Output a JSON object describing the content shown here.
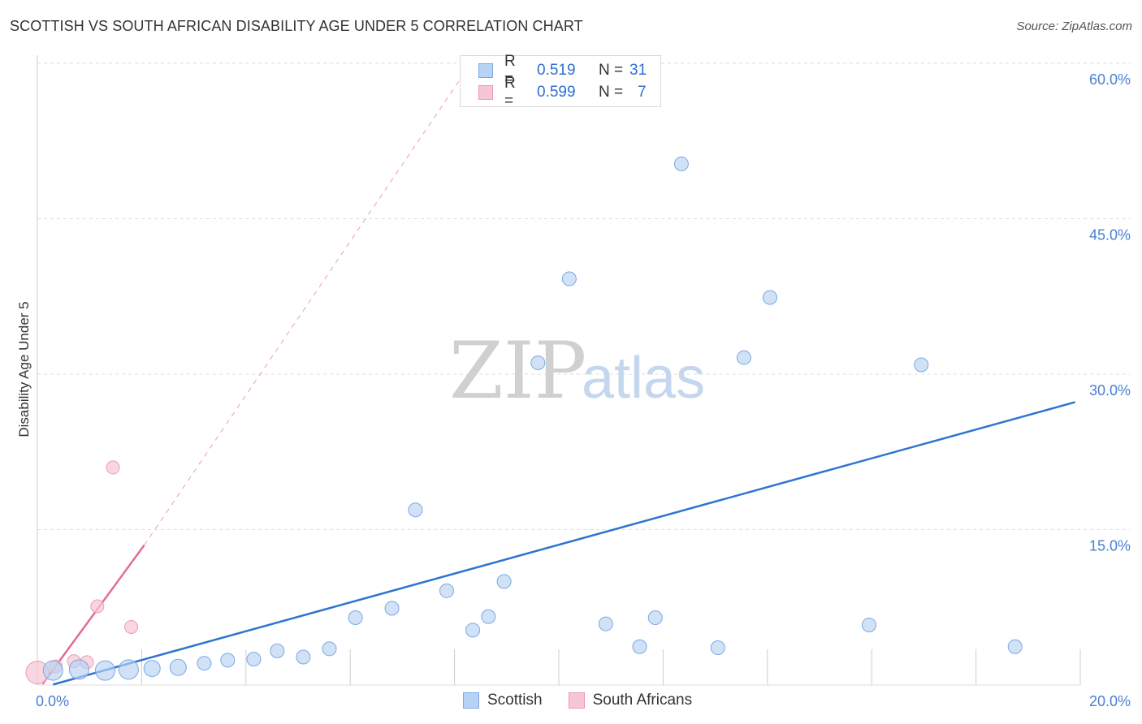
{
  "title": "SCOTTISH VS SOUTH AFRICAN DISABILITY AGE UNDER 5 CORRELATION CHART",
  "source": "Source: ZipAtlas.com",
  "watermark": {
    "zip": "ZIP",
    "atlas": "atlas"
  },
  "colors": {
    "scottish_fill": "#b8d2f3",
    "scottish_stroke": "#7aa8e6",
    "scottish_line": "#2f74d0",
    "sa_fill": "#f7c6d4",
    "sa_stroke": "#ee9ab4",
    "sa_line": "#e36b98",
    "grid": "#dddddd",
    "tick_text": "#4a7fd4"
  },
  "legend_top": {
    "rows": [
      {
        "r_label": "R =",
        "r_value": "0.519",
        "n_label": "N =",
        "n_value": "31"
      },
      {
        "r_label": "R =",
        "r_value": "0.599",
        "n_label": "N =",
        "n_value": "7"
      }
    ]
  },
  "legend_bottom": [
    "Scottish",
    "South Africans"
  ],
  "chart_data": {
    "type": "scatter",
    "title": "SCOTTISH VS SOUTH AFRICAN DISABILITY AGE UNDER 5 CORRELATION CHART",
    "xlabel": "",
    "ylabel": "Disability Age Under 5",
    "xlim": [
      0,
      20
    ],
    "ylim": [
      0,
      60
    ],
    "x_tick_labels": [
      "0.0%",
      "20.0%"
    ],
    "y_ticks": [
      15,
      30,
      45,
      60
    ],
    "y_tick_labels": [
      "15.0%",
      "30.0%",
      "45.0%",
      "60.0%"
    ],
    "grid": true,
    "series": [
      {
        "name": "Scottish",
        "r": 0.519,
        "n": 31,
        "points": [
          {
            "x": 0.3,
            "y": 1.4
          },
          {
            "x": 0.8,
            "y": 1.5
          },
          {
            "x": 1.3,
            "y": 1.4
          },
          {
            "x": 1.75,
            "y": 1.5
          },
          {
            "x": 2.2,
            "y": 1.6
          },
          {
            "x": 2.7,
            "y": 1.7
          },
          {
            "x": 3.2,
            "y": 2.1
          },
          {
            "x": 3.65,
            "y": 2.4
          },
          {
            "x": 4.15,
            "y": 2.5
          },
          {
            "x": 4.6,
            "y": 3.3
          },
          {
            "x": 5.1,
            "y": 2.7
          },
          {
            "x": 5.6,
            "y": 3.5
          },
          {
            "x": 6.1,
            "y": 6.5
          },
          {
            "x": 6.8,
            "y": 7.4
          },
          {
            "x": 7.25,
            "y": 16.9
          },
          {
            "x": 7.85,
            "y": 9.1
          },
          {
            "x": 8.35,
            "y": 5.3
          },
          {
            "x": 8.65,
            "y": 6.6
          },
          {
            "x": 8.95,
            "y": 10.0
          },
          {
            "x": 9.6,
            "y": 31.1
          },
          {
            "x": 10.2,
            "y": 39.2
          },
          {
            "x": 10.9,
            "y": 5.9
          },
          {
            "x": 11.55,
            "y": 3.7
          },
          {
            "x": 11.85,
            "y": 6.5
          },
          {
            "x": 12.35,
            "y": 50.3
          },
          {
            "x": 13.05,
            "y": 3.6
          },
          {
            "x": 13.55,
            "y": 31.6
          },
          {
            "x": 14.05,
            "y": 37.4
          },
          {
            "x": 15.95,
            "y": 5.8
          },
          {
            "x": 16.95,
            "y": 30.9
          },
          {
            "x": 18.75,
            "y": 3.7
          }
        ],
        "trend": {
          "x0": 0.3,
          "y0": 0.05,
          "x1": 19.9,
          "y1": 27.3
        }
      },
      {
        "name": "South Africans",
        "r": 0.599,
        "n": 7,
        "points": [
          {
            "x": 0.0,
            "y": 1.2
          },
          {
            "x": 0.35,
            "y": 1.8
          },
          {
            "x": 0.7,
            "y": 2.3
          },
          {
            "x": 0.95,
            "y": 2.2
          },
          {
            "x": 1.15,
            "y": 7.6
          },
          {
            "x": 1.45,
            "y": 21.0
          },
          {
            "x": 1.8,
            "y": 5.6
          }
        ],
        "trend": {
          "x0": 0.1,
          "y0": 0.1,
          "x1": 2.05,
          "y1": 13.5
        },
        "trend_extension": {
          "x0": 2.05,
          "y0": 13.5,
          "x1": 8.1,
          "y1": 58.4
        }
      }
    ]
  }
}
